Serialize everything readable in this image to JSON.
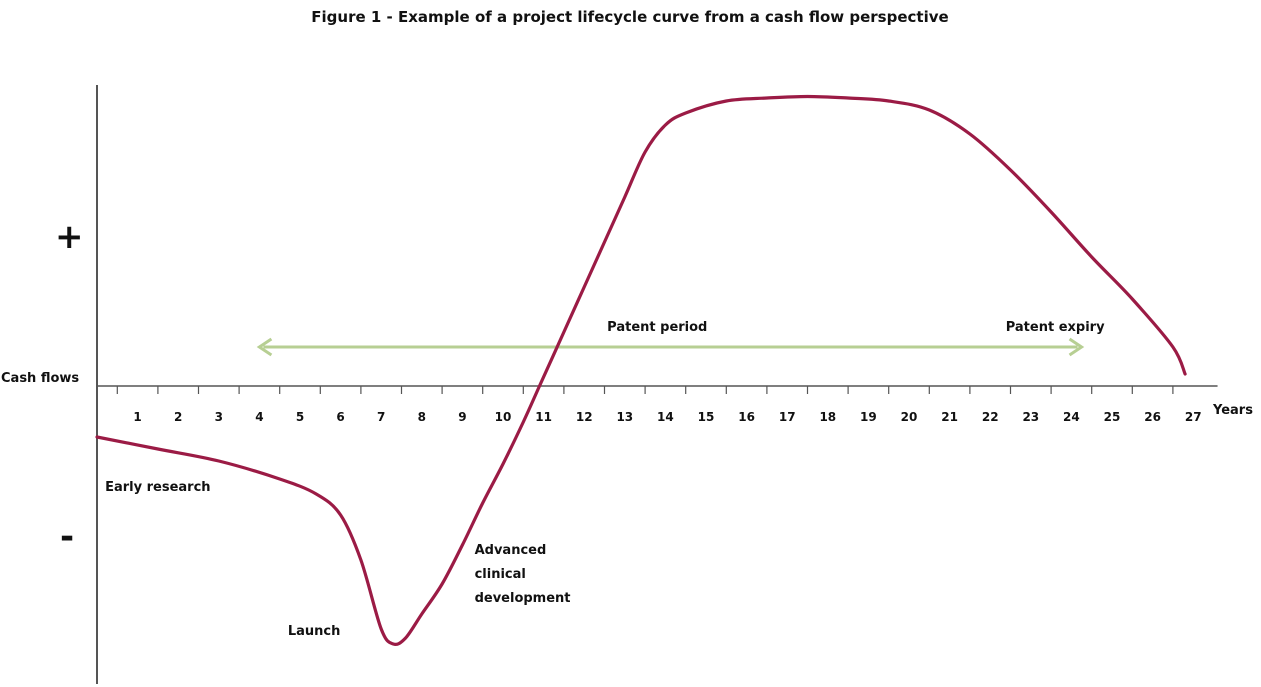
{
  "chart_data": {
    "type": "line",
    "title": "Figure 1 - Example of a project lifecycle curve from a cash flow perspective",
    "ylabel": "Cash flows",
    "xlabel_unit": "Years",
    "y_sign_positive": "+",
    "y_sign_negative": "-",
    "x_ticks": [
      "1",
      "2",
      "3",
      "4",
      "5",
      "6",
      "7",
      "8",
      "9",
      "10",
      "11",
      "12",
      "13",
      "14",
      "15",
      "16",
      "17",
      "18",
      "19",
      "20",
      "21",
      "22",
      "23",
      "24",
      "25",
      "26",
      "27"
    ],
    "xlim": [
      0,
      27.6
    ],
    "ylim": [
      -1.0,
      1.0
    ],
    "series": [
      {
        "color": "#9b1b45",
        "x": [
          0.0,
          1.5,
          3.0,
          4.5,
          5.4,
          6.0,
          6.5,
          7.0,
          7.3,
          7.6,
          8.0,
          8.5,
          9.0,
          9.5,
          10.0,
          10.5,
          10.9,
          11.5,
          12.0,
          12.5,
          13.0,
          13.5,
          14.0,
          14.5,
          15.5,
          16.5,
          17.5,
          18.5,
          19.5,
          20.5,
          21.5,
          22.5,
          23.5,
          24.5,
          25.5,
          26.5,
          26.8
        ],
        "y": [
          -0.17,
          -0.21,
          -0.25,
          -0.31,
          -0.36,
          -0.43,
          -0.58,
          -0.81,
          -0.86,
          -0.84,
          -0.76,
          -0.66,
          -0.53,
          -0.39,
          -0.26,
          -0.12,
          0.0,
          0.18,
          0.33,
          0.48,
          0.63,
          0.78,
          0.87,
          0.91,
          0.95,
          0.96,
          0.965,
          0.96,
          0.95,
          0.92,
          0.84,
          0.72,
          0.58,
          0.43,
          0.29,
          0.13,
          0.04
        ]
      }
    ],
    "patent_period": {
      "from": 4,
      "to": 24.25,
      "y": 0.13,
      "label": "Patent period",
      "end_label": "Patent expiry",
      "color": "#b7cf93"
    },
    "annotations": [
      {
        "text": "Early research",
        "x": 0.2,
        "y": -0.35
      },
      {
        "text": "Launch",
        "x": 4.7,
        "y": -0.83
      },
      {
        "text": "Advanced",
        "x": 9.3,
        "y": -0.56
      },
      {
        "text": "clinical",
        "x": 9.3,
        "y": -0.64
      },
      {
        "text": "development",
        "x": 9.3,
        "y": -0.72
      }
    ]
  }
}
